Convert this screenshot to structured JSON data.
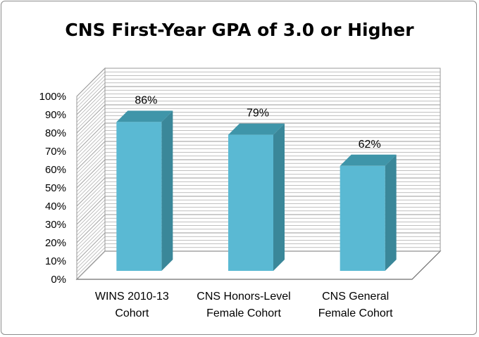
{
  "chart_data": {
    "type": "bar",
    "title": "CNS First-Year GPA of 3.0 or Higher",
    "categories": [
      [
        "WINS 2010-13",
        "Cohort"
      ],
      [
        "CNS Honors-Level",
        "Female Cohort"
      ],
      [
        "CNS General",
        "Female Cohort"
      ]
    ],
    "values": [
      86,
      79,
      62
    ],
    "data_labels": [
      "86%",
      "79%",
      "62%"
    ],
    "y_ticks": [
      "0%",
      "10%",
      "20%",
      "30%",
      "40%",
      "50%",
      "60%",
      "70%",
      "80%",
      "90%",
      "100%"
    ],
    "ylim": [
      0,
      100
    ],
    "grid": true,
    "style": "3d-column",
    "colors": {
      "bar_front": "#5ab9d3",
      "bar_side": "#3a8799",
      "bar_top": "#3f95a9",
      "grid": "#9a9a9a"
    }
  }
}
